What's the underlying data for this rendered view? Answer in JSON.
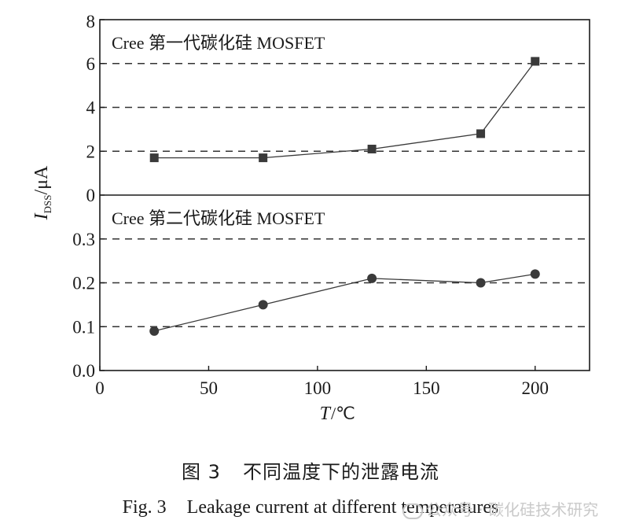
{
  "chart_data": [
    {
      "type": "line",
      "panel_label": "Cree 第一代碳化硅 MOSFET",
      "x": [
        25,
        75,
        125,
        175,
        200
      ],
      "series": [
        {
          "values": [
            1.7,
            1.7,
            2.1,
            2.8,
            6.1
          ],
          "marker": "square"
        }
      ],
      "xlim": [
        0,
        225
      ],
      "ylim": [
        0,
        8
      ],
      "yticks": [
        "0",
        "2",
        "4",
        "6",
        "8"
      ],
      "gridlines": [
        2,
        4,
        6
      ],
      "grid": "horizontal dashed"
    },
    {
      "type": "line",
      "panel_label": "Cree 第二代碳化硅 MOSFET",
      "x": [
        25,
        75,
        125,
        175,
        200
      ],
      "series": [
        {
          "values": [
            0.09,
            0.15,
            0.21,
            0.2,
            0.22
          ],
          "marker": "circle"
        }
      ],
      "xlim": [
        0,
        225
      ],
      "ylim": [
        0,
        0.4
      ],
      "yticks": [
        "0.0",
        "0.1",
        "0.2",
        "0.3"
      ],
      "gridlines": [
        0.1,
        0.2,
        0.3
      ],
      "grid": "horizontal dashed"
    }
  ],
  "axes": {
    "xticks": [
      "0",
      "50",
      "100",
      "150",
      "200"
    ],
    "xlabel_var": "T",
    "xlabel_unit": "/℃",
    "ylabel_var": "I",
    "ylabel_sub": "DSS",
    "ylabel_unit": "/μA"
  },
  "captions": {
    "cn_number": "图 3",
    "cn_text": "不同温度下的泄露电流",
    "en_number": "Fig. 3",
    "en_text": "Leakage current at different temperatures"
  },
  "watermark": {
    "text": "公众号 · 碳化硅技术研究"
  },
  "colors": {
    "axis": "#1a1a1a",
    "series": "#3a3a3a",
    "grid": "#333333",
    "watermark": "#c9c9c9"
  }
}
